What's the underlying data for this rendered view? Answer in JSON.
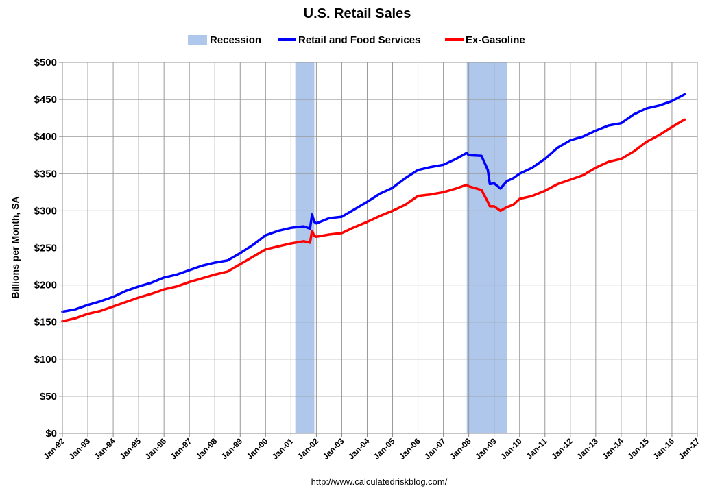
{
  "chart_data": {
    "type": "line",
    "title": "U.S. Retail Sales",
    "ylabel": "Billions per Month, SA",
    "xlabel": "",
    "source": "http://www.calculatedriskblog.com/",
    "ylim": [
      0,
      500
    ],
    "y_ticks": [
      0,
      50,
      100,
      150,
      200,
      250,
      300,
      350,
      400,
      450,
      500
    ],
    "y_tick_labels": [
      "$0",
      "$50",
      "$100",
      "$150",
      "$200",
      "$250",
      "$300",
      "$350",
      "$400",
      "$450",
      "$500"
    ],
    "x_range": [
      1992.0,
      2017.0
    ],
    "x_tick_labels": [
      "Jan-92",
      "Jan-93",
      "Jan-94",
      "Jan-95",
      "Jan-96",
      "Jan-97",
      "Jan-98",
      "Jan-99",
      "Jan-00",
      "Jan-01",
      "Jan-02",
      "Jan-03",
      "Jan-04",
      "Jan-05",
      "Jan-06",
      "Jan-07",
      "Jan-08",
      "Jan-09",
      "Jan-10",
      "Jan-11",
      "Jan-12",
      "Jan-13",
      "Jan-14",
      "Jan-15",
      "Jan-16",
      "Jan-17"
    ],
    "grid": true,
    "legend_position": "top-center",
    "legend": [
      "Recession",
      "Retail and Food Services",
      "Ex-Gasoline"
    ],
    "recessions": [
      {
        "start": 2001.17,
        "end": 2001.92
      },
      {
        "start": 2007.92,
        "end": 2009.5
      }
    ],
    "series": [
      {
        "name": "Retail and Food Services",
        "color": "#0000ff",
        "x": [
          1992.0,
          1992.5,
          1993.0,
          1993.5,
          1994.0,
          1994.5,
          1995.0,
          1995.5,
          1996.0,
          1996.5,
          1997.0,
          1997.5,
          1998.0,
          1998.5,
          1999.0,
          1999.5,
          2000.0,
          2000.5,
          2001.0,
          2001.5,
          2001.75,
          2001.83,
          2001.92,
          2002.0,
          2002.5,
          2003.0,
          2003.5,
          2004.0,
          2004.5,
          2005.0,
          2005.5,
          2006.0,
          2006.5,
          2007.0,
          2007.5,
          2007.92,
          2008.0,
          2008.5,
          2008.75,
          2008.83,
          2009.0,
          2009.25,
          2009.5,
          2009.75,
          2010.0,
          2010.5,
          2011.0,
          2011.5,
          2012.0,
          2012.5,
          2013.0,
          2013.5,
          2014.0,
          2014.5,
          2015.0,
          2015.5,
          2016.0,
          2016.5
        ],
        "y": [
          164,
          167,
          173,
          178,
          184,
          192,
          198,
          203,
          210,
          214,
          220,
          226,
          230,
          233,
          243,
          254,
          267,
          273,
          277,
          279,
          276,
          295,
          285,
          283,
          290,
          292,
          302,
          312,
          323,
          331,
          344,
          355,
          359,
          362,
          370,
          378,
          375,
          374,
          355,
          336,
          337,
          330,
          340,
          344,
          350,
          358,
          370,
          385,
          395,
          400,
          408,
          415,
          418,
          430,
          438,
          442,
          448,
          457
        ]
      },
      {
        "name": "Ex-Gasoline",
        "color": "#ff0000",
        "x": [
          1992.0,
          1992.5,
          1993.0,
          1993.5,
          1994.0,
          1994.5,
          1995.0,
          1995.5,
          1996.0,
          1996.5,
          1997.0,
          1997.5,
          1998.0,
          1998.5,
          1999.0,
          1999.5,
          2000.0,
          2000.5,
          2001.0,
          2001.5,
          2001.75,
          2001.83,
          2001.92,
          2002.0,
          2002.5,
          2003.0,
          2003.5,
          2004.0,
          2004.5,
          2005.0,
          2005.5,
          2006.0,
          2006.5,
          2007.0,
          2007.5,
          2007.92,
          2008.0,
          2008.5,
          2008.75,
          2008.83,
          2009.0,
          2009.25,
          2009.5,
          2009.75,
          2010.0,
          2010.5,
          2011.0,
          2011.5,
          2012.0,
          2012.5,
          2013.0,
          2013.5,
          2014.0,
          2014.5,
          2015.0,
          2015.5,
          2016.0,
          2016.5
        ],
        "y": [
          151,
          155,
          161,
          165,
          171,
          177,
          183,
          188,
          194,
          198,
          204,
          209,
          214,
          218,
          228,
          238,
          248,
          252,
          256,
          259,
          257,
          273,
          266,
          265,
          268,
          270,
          278,
          285,
          293,
          300,
          308,
          320,
          322,
          325,
          330,
          335,
          333,
          328,
          312,
          306,
          306,
          300,
          305,
          308,
          316,
          320,
          327,
          336,
          342,
          348,
          358,
          366,
          370,
          380,
          393,
          402,
          413,
          423
        ]
      }
    ]
  }
}
